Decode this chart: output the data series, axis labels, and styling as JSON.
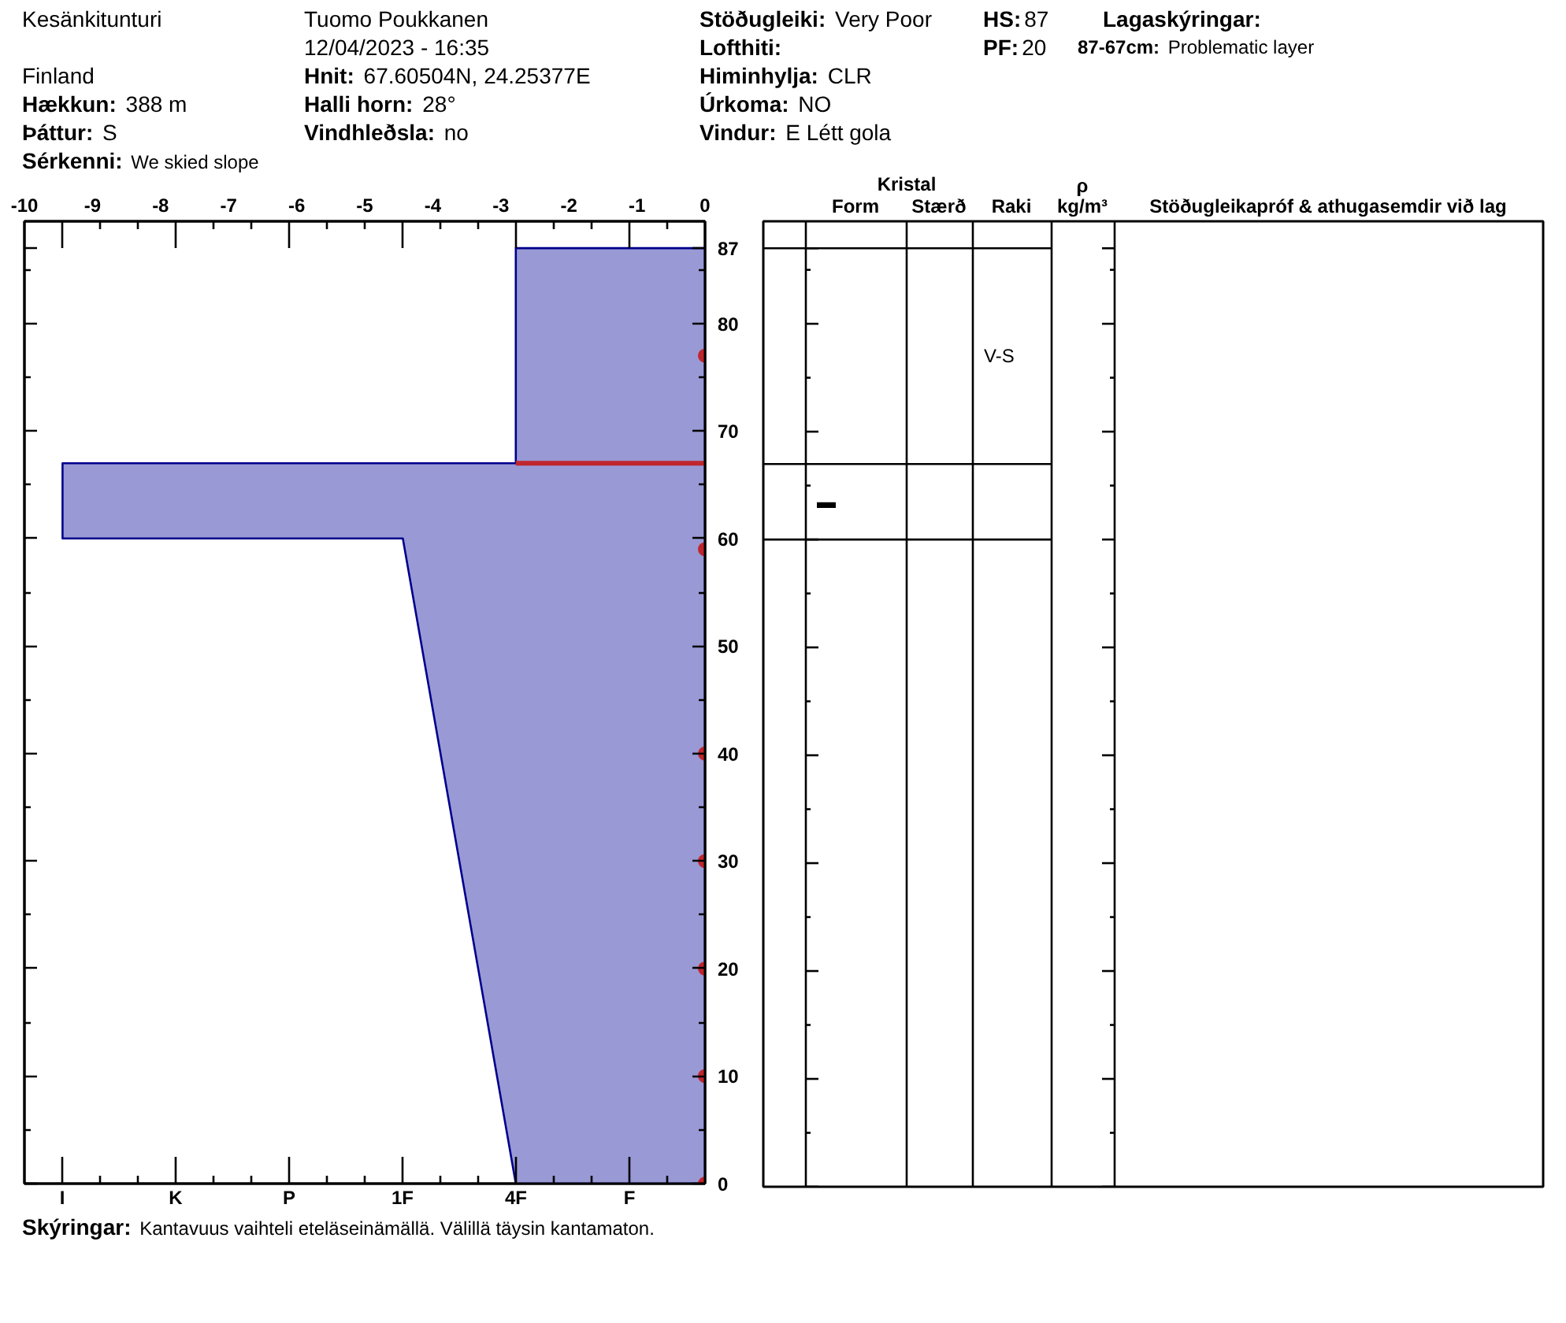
{
  "chart_data": [
    {
      "type": "area",
      "categories": [
        "I",
        "K",
        "P",
        "1F",
        "4F",
        "F"
      ],
      "x2lim": [
        -10,
        0
      ],
      "x2ticks": [
        -10,
        -9,
        -8,
        -7,
        -6,
        -5,
        -4,
        -3,
        -2,
        -1,
        0
      ],
      "ylim": [
        0,
        89.5
      ],
      "yticks": [
        0,
        {
          "value": 5,
          "label": null
        },
        10,
        {
          "value": 15,
          "label": null
        },
        20,
        {
          "value": 25,
          "label": null
        },
        30,
        {
          "value": 35,
          "label": null
        },
        40,
        {
          "value": 45,
          "label": null
        },
        50,
        {
          "value": 55,
          "label": null
        },
        60,
        {
          "value": 65,
          "label": null
        },
        70,
        {
          "value": 75,
          "label": null
        },
        80,
        {
          "value": 85,
          "label": null
        },
        87
      ],
      "series": [
        {
          "type": "area",
          "axis": "x2",
          "color": "#9999d5",
          "x": [
            0,
            -2.78,
            -2.78,
            -9.44,
            -9.44,
            -4.44,
            -2.78,
            0
          ],
          "values": [
            87,
            87,
            67,
            67,
            60,
            60,
            0,
            0
          ]
        },
        {
          "type": "line",
          "axis": "x2",
          "color": "#c0262d",
          "x": [
            -2.78,
            0
          ],
          "values": [
            67,
            67
          ]
        },
        {
          "type": "scatter",
          "axis": "x2",
          "marker": "circle",
          "color": "#c0262d",
          "x": [
            0,
            0,
            0,
            0,
            0,
            0,
            0
          ],
          "values": [
            77,
            59,
            40,
            30,
            20,
            10,
            0
          ]
        }
      ],
      "annotations": [
        "Kesänkitunturi",
        "Finland",
        "Hækkun: 388 m",
        "Þáttur: S",
        "Sérkenni: We skied slope",
        "Tuomo Poukkanen",
        "12/04/2023 - 16:35",
        "Hnit: 67.60504N, 24.25377E",
        "Halli horn: 28°",
        "Vindhleðsla: no",
        "Stöðugleiki: Very Poor",
        "Lofthiti:",
        "Himinhylja: CLR",
        "Úrkoma: NO",
        "Vindur: E Létt gola",
        "HS:87",
        "PF:20",
        "Lagaskýringar:",
        "87-67cm: Problematic layer",
        "Skýringar: Kantavuus vaihteli eteläseinämällä. Välillä täysin kantamaton."
      ]
    },
    {
      "type": "other",
      "categories": [
        null,
        "Form",
        "Stærð",
        "Raki",
        "ρ kg/m³",
        "Stöðugleikapróf & athugasemdir við lag"
      ],
      "annotations": [
        "Kristal",
        "V-S",
        "▬"
      ]
    }
  ]
}
